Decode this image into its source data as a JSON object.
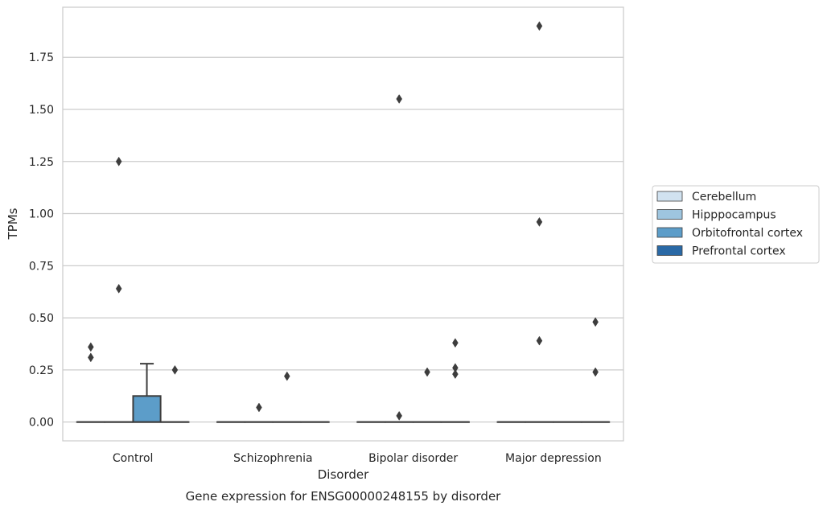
{
  "chart_data": {
    "type": "box",
    "xlabel": "Disorder",
    "ylabel": "TPMs",
    "caption": "Gene expression for ENSG00000248155 by disorder",
    "categories": [
      "Control",
      "Schizophrenia",
      "Bipolar disorder",
      "Major depression"
    ],
    "ylim": [
      -0.09,
      1.99
    ],
    "yticks": [
      0.0,
      0.25,
      0.5,
      0.75,
      1.0,
      1.25,
      1.5,
      1.75
    ],
    "ytick_labels": [
      "0.00",
      "0.25",
      "0.50",
      "0.75",
      "1.00",
      "1.25",
      "1.50",
      "1.75"
    ],
    "grid": true,
    "legend_position": "right",
    "series": [
      {
        "name": "Cerebellum",
        "color": "#d1e2f0",
        "boxes": [
          {
            "category": "Control",
            "q1": 0,
            "median": 0,
            "q3": 0,
            "whisker_low": 0,
            "whisker_high": 0,
            "outliers": [
              0.36,
              0.31
            ]
          },
          {
            "category": "Schizophrenia",
            "q1": 0,
            "median": 0,
            "q3": 0,
            "whisker_low": 0,
            "whisker_high": 0,
            "outliers": []
          },
          {
            "category": "Bipolar disorder",
            "q1": 0,
            "median": 0,
            "q3": 0,
            "whisker_low": 0,
            "whisker_high": 0,
            "outliers": []
          },
          {
            "category": "Major depression",
            "q1": 0,
            "median": 0,
            "q3": 0,
            "whisker_low": 0,
            "whisker_high": 0,
            "outliers": []
          }
        ]
      },
      {
        "name": "Hipppocampus",
        "color": "#9ec5df",
        "boxes": [
          {
            "category": "Control",
            "q1": 0,
            "median": 0,
            "q3": 0,
            "whisker_low": 0,
            "whisker_high": 0,
            "outliers": [
              1.25,
              0.64
            ]
          },
          {
            "category": "Schizophrenia",
            "q1": 0,
            "median": 0,
            "q3": 0,
            "whisker_low": 0,
            "whisker_high": 0,
            "outliers": [
              0.07
            ]
          },
          {
            "category": "Bipolar disorder",
            "q1": 0,
            "median": 0,
            "q3": 0,
            "whisker_low": 0,
            "whisker_high": 0,
            "outliers": [
              1.55,
              0.03
            ]
          },
          {
            "category": "Major depression",
            "q1": 0,
            "median": 0,
            "q3": 0,
            "whisker_low": 0,
            "whisker_high": 0,
            "outliers": [
              1.9,
              0.96,
              0.39
            ]
          }
        ]
      },
      {
        "name": "Orbitofrontal cortex",
        "color": "#5c9dc9",
        "boxes": [
          {
            "category": "Control",
            "q1": 0,
            "median": 0,
            "q3": 0.125,
            "whisker_low": 0,
            "whisker_high": 0.28,
            "outliers": []
          },
          {
            "category": "Schizophrenia",
            "q1": 0,
            "median": 0,
            "q3": 0,
            "whisker_low": 0,
            "whisker_high": 0,
            "outliers": [
              0.22
            ]
          },
          {
            "category": "Bipolar disorder",
            "q1": 0,
            "median": 0,
            "q3": 0,
            "whisker_low": 0,
            "whisker_high": 0,
            "outliers": [
              0.24
            ]
          },
          {
            "category": "Major depression",
            "q1": 0,
            "median": 0,
            "q3": 0,
            "whisker_low": 0,
            "whisker_high": 0,
            "outliers": []
          }
        ]
      },
      {
        "name": "Prefrontal cortex",
        "color": "#2a69a6",
        "boxes": [
          {
            "category": "Control",
            "q1": 0,
            "median": 0,
            "q3": 0,
            "whisker_low": 0,
            "whisker_high": 0,
            "outliers": [
              0.25
            ]
          },
          {
            "category": "Schizophrenia",
            "q1": 0,
            "median": 0,
            "q3": 0,
            "whisker_low": 0,
            "whisker_high": 0,
            "outliers": []
          },
          {
            "category": "Bipolar disorder",
            "q1": 0,
            "median": 0,
            "q3": 0,
            "whisker_low": 0,
            "whisker_high": 0,
            "outliers": [
              0.38,
              0.26,
              0.23
            ]
          },
          {
            "category": "Major depression",
            "q1": 0,
            "median": 0,
            "q3": 0,
            "whisker_low": 0,
            "whisker_high": 0,
            "outliers": [
              0.48,
              0.24
            ]
          }
        ]
      }
    ]
  }
}
